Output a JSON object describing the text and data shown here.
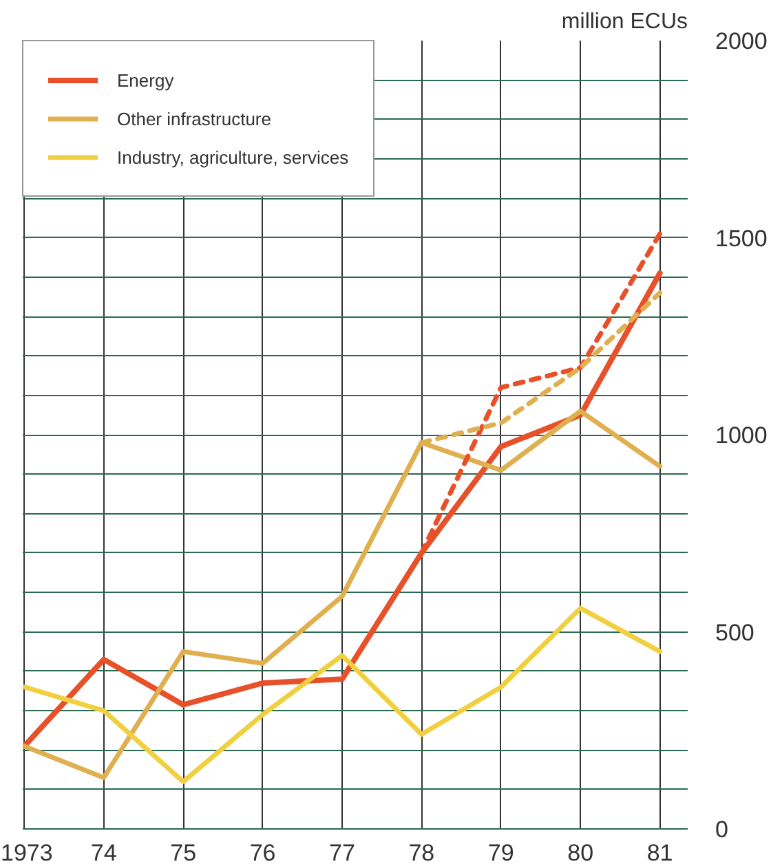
{
  "chart_data": {
    "type": "line",
    "ylabel": "million ECUs",
    "categories": [
      "1973",
      "74",
      "75",
      "76",
      "77",
      "78",
      "79",
      "80",
      "81"
    ],
    "series": [
      {
        "name": "Energy",
        "color": "#e8502a",
        "values": [
          210,
          430,
          315,
          370,
          380,
          700,
          970,
          1050,
          1410
        ]
      },
      {
        "name": "Other infrastructure",
        "color": "#e0b050",
        "values": [
          210,
          130,
          450,
          420,
          590,
          980,
          910,
          1060,
          920
        ]
      },
      {
        "name": "Industry, agriculture, services",
        "color": "#f0d040",
        "values": [
          360,
          300,
          120,
          290,
          440,
          240,
          360,
          560,
          450
        ]
      },
      {
        "color": "#e8502a",
        "x": [
          "78",
          "79",
          "80",
          "81"
        ],
        "values": [
          700,
          1120,
          1170,
          1510
        ],
        "line_style": "dashed"
      },
      {
        "color": "#e0b050",
        "x": [
          "78",
          "79",
          "80",
          "81"
        ],
        "values": [
          980,
          1030,
          1170,
          1360
        ],
        "line_style": "dashed"
      }
    ],
    "ylim": [
      0,
      2000
    ],
    "yticks": [
      0,
      {
        "value": 100,
        "label": null
      },
      {
        "value": 200,
        "label": null
      },
      {
        "value": 300,
        "label": null
      },
      {
        "value": 400,
        "label": null
      },
      500,
      {
        "value": 600,
        "label": null
      },
      {
        "value": 700,
        "label": null
      },
      {
        "value": 800,
        "label": null
      },
      {
        "value": 900,
        "label": null
      },
      1000,
      {
        "value": 1100,
        "label": null
      },
      {
        "value": 1200,
        "label": null
      },
      {
        "value": 1300,
        "label": null
      },
      {
        "value": 1400,
        "label": null
      },
      1500,
      {
        "value": 1600,
        "label": null
      },
      {
        "value": 1700,
        "label": null
      },
      {
        "value": 1800,
        "label": null
      },
      {
        "value": 1900,
        "label": null
      },
      2000
    ],
    "grid": true,
    "legend": "top left",
    "line_style": "solid",
    "marker": "none"
  }
}
